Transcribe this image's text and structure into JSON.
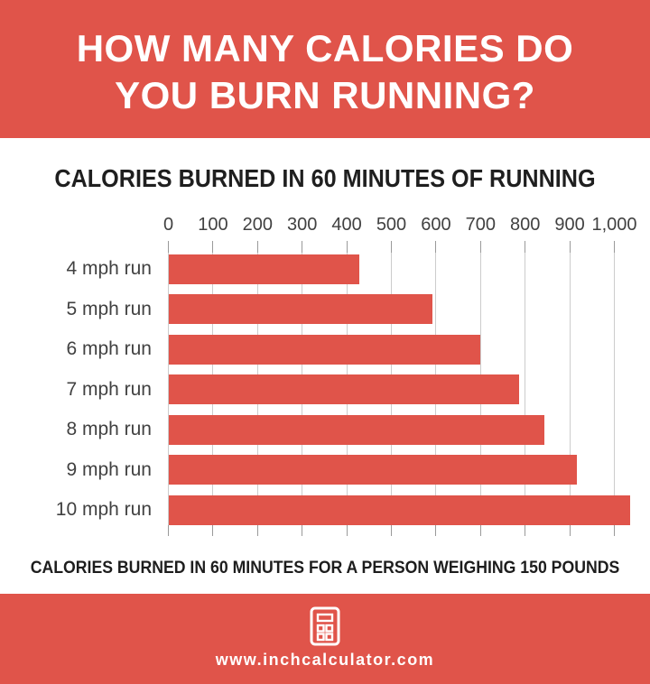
{
  "header": {
    "line1": "HOW MANY CALORIES DO",
    "line2": "YOU BURN RUNNING?"
  },
  "chart_data": {
    "type": "bar",
    "orientation": "horizontal",
    "title": "CALORIES BURNED IN 60 MINUTES OF RUNNING",
    "categories": [
      "4 mph run",
      "5 mph run",
      "6 mph run",
      "7 mph run",
      "8 mph run",
      "9 mph run",
      "10 mph run"
    ],
    "values": [
      429,
      593,
      700,
      786,
      843,
      915,
      1036
    ],
    "x_ticks": [
      0,
      100,
      200,
      300,
      400,
      500,
      600,
      700,
      800,
      900,
      1000
    ],
    "x_tick_labels": [
      "0",
      "100",
      "200",
      "300",
      "400",
      "500",
      "600",
      "700",
      "800",
      "900",
      "1,000"
    ],
    "xlim": [
      0,
      1060
    ],
    "grid": true,
    "legend": false,
    "bar_color": "#e0544a"
  },
  "caption": "CALORIES BURNED IN 60 MINUTES FOR A PERSON WEIGHING 150 POUNDS",
  "footer": {
    "url": "www.inchcalculator.com",
    "icon": "calculator-icon"
  },
  "colors": {
    "accent": "#e0544a",
    "grid": "#cccccc",
    "tick": "#9a9a9a",
    "title_text": "#1f1f1f",
    "label_text": "#414141",
    "banner_text": "#ffffff",
    "background": "#ffffff"
  }
}
